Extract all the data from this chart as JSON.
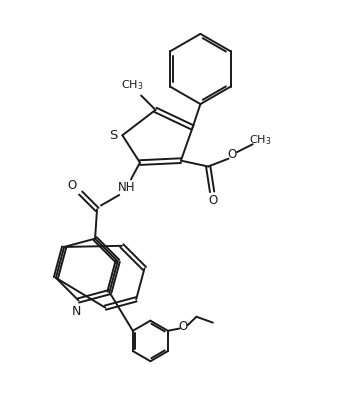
{
  "bg_color": "#ffffff",
  "line_color": "#1a1a1a",
  "line_width": 1.4,
  "font_size": 8.5,
  "fig_width": 3.54,
  "fig_height": 4.11,
  "dpi": 100,
  "xlim": [
    0,
    9
  ],
  "ylim": [
    0,
    10.5
  ]
}
